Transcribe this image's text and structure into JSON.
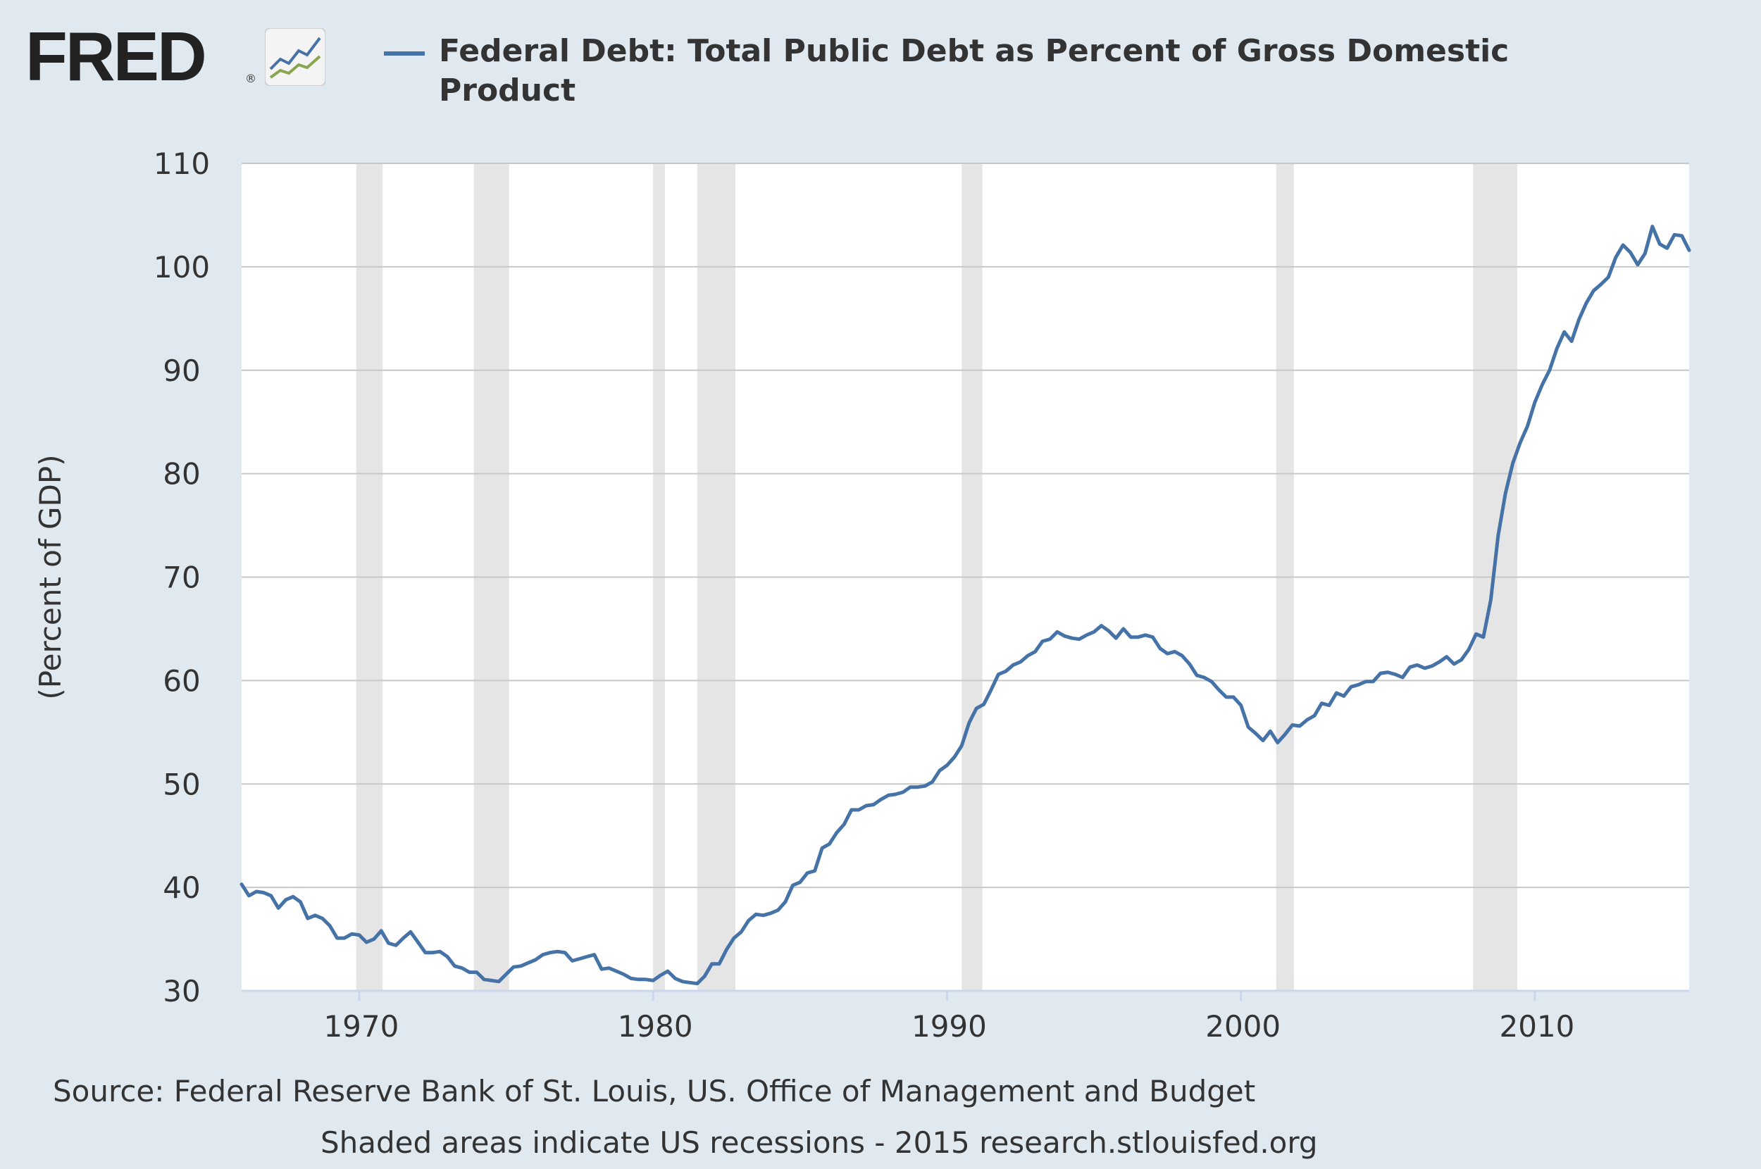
{
  "logo": {
    "text": "FRED",
    "registered": "®",
    "icon": "line-chart-icon"
  },
  "chart_data": {
    "type": "line",
    "title": "Federal Debt: Total Public Debt as Percent of Gross Domestic Product",
    "xlabel": "",
    "ylabel": "(Percent of GDP)",
    "xlim": [
      1966.0,
      2015.25
    ],
    "ylim": [
      30,
      110
    ],
    "yticks": [
      30,
      40,
      50,
      60,
      70,
      80,
      90,
      100,
      110
    ],
    "xticks": [
      1970,
      1980,
      1990,
      2000,
      2010
    ],
    "grid": true,
    "legend_position": "top",
    "colors": {
      "line": "#4572a7",
      "grid": "#c8c8c8",
      "recession": "#e5e5e5",
      "axis": "#ccd6eb"
    },
    "recessions": [
      [
        1969.9,
        1970.8
      ],
      [
        1973.9,
        1975.1
      ],
      [
        1980.0,
        1980.4
      ],
      [
        1981.5,
        1982.8
      ],
      [
        1990.5,
        1991.2
      ],
      [
        2001.2,
        2001.8
      ],
      [
        2007.9,
        2009.4
      ]
    ],
    "series": [
      {
        "name": "Federal Debt: Total Public Debt as Percent of Gross Domestic Product",
        "points": [
          [
            1966.0,
            40.3
          ],
          [
            1966.25,
            39.2
          ],
          [
            1966.5,
            39.6
          ],
          [
            1966.75,
            39.5
          ],
          [
            1967.0,
            39.2
          ],
          [
            1967.25,
            38.0
          ],
          [
            1967.5,
            38.8
          ],
          [
            1967.75,
            39.1
          ],
          [
            1968.0,
            38.6
          ],
          [
            1968.25,
            37.0
          ],
          [
            1968.5,
            37.3
          ],
          [
            1968.75,
            37.0
          ],
          [
            1969.0,
            36.3
          ],
          [
            1969.25,
            35.1
          ],
          [
            1969.5,
            35.1
          ],
          [
            1969.75,
            35.5
          ],
          [
            1970.0,
            35.4
          ],
          [
            1970.25,
            34.7
          ],
          [
            1970.5,
            35.0
          ],
          [
            1970.75,
            35.8
          ],
          [
            1971.0,
            34.6
          ],
          [
            1971.25,
            34.4
          ],
          [
            1971.5,
            35.1
          ],
          [
            1971.75,
            35.7
          ],
          [
            1972.0,
            34.7
          ],
          [
            1972.25,
            33.7
          ],
          [
            1972.5,
            33.7
          ],
          [
            1972.75,
            33.8
          ],
          [
            1973.0,
            33.3
          ],
          [
            1973.25,
            32.4
          ],
          [
            1973.5,
            32.2
          ],
          [
            1973.75,
            31.8
          ],
          [
            1974.0,
            31.8
          ],
          [
            1974.25,
            31.1
          ],
          [
            1974.5,
            31.0
          ],
          [
            1974.75,
            30.9
          ],
          [
            1975.0,
            31.6
          ],
          [
            1975.25,
            32.3
          ],
          [
            1975.5,
            32.4
          ],
          [
            1975.75,
            32.7
          ],
          [
            1976.0,
            33.0
          ],
          [
            1976.25,
            33.5
          ],
          [
            1976.5,
            33.7
          ],
          [
            1976.75,
            33.8
          ],
          [
            1977.0,
            33.7
          ],
          [
            1977.25,
            32.9
          ],
          [
            1977.5,
            33.1
          ],
          [
            1977.75,
            33.3
          ],
          [
            1978.0,
            33.5
          ],
          [
            1978.25,
            32.1
          ],
          [
            1978.5,
            32.2
          ],
          [
            1978.75,
            31.9
          ],
          [
            1979.0,
            31.6
          ],
          [
            1979.25,
            31.2
          ],
          [
            1979.5,
            31.1
          ],
          [
            1979.75,
            31.1
          ],
          [
            1980.0,
            31.0
          ],
          [
            1980.25,
            31.5
          ],
          [
            1980.5,
            31.9
          ],
          [
            1980.75,
            31.2
          ],
          [
            1981.0,
            30.9
          ],
          [
            1981.25,
            30.8
          ],
          [
            1981.5,
            30.7
          ],
          [
            1981.75,
            31.4
          ],
          [
            1982.0,
            32.6
          ],
          [
            1982.25,
            32.6
          ],
          [
            1982.5,
            34.0
          ],
          [
            1982.75,
            35.1
          ],
          [
            1983.0,
            35.7
          ],
          [
            1983.25,
            36.8
          ],
          [
            1983.5,
            37.4
          ],
          [
            1983.75,
            37.3
          ],
          [
            1984.0,
            37.5
          ],
          [
            1984.25,
            37.8
          ],
          [
            1984.5,
            38.6
          ],
          [
            1984.75,
            40.2
          ],
          [
            1985.0,
            40.5
          ],
          [
            1985.25,
            41.4
          ],
          [
            1985.5,
            41.6
          ],
          [
            1985.75,
            43.8
          ],
          [
            1986.0,
            44.2
          ],
          [
            1986.25,
            45.3
          ],
          [
            1986.5,
            46.1
          ],
          [
            1986.75,
            47.5
          ],
          [
            1987.0,
            47.5
          ],
          [
            1987.25,
            47.9
          ],
          [
            1987.5,
            48.0
          ],
          [
            1987.75,
            48.5
          ],
          [
            1988.0,
            48.9
          ],
          [
            1988.25,
            49.0
          ],
          [
            1988.5,
            49.2
          ],
          [
            1988.75,
            49.7
          ],
          [
            1989.0,
            49.7
          ],
          [
            1989.25,
            49.8
          ],
          [
            1989.5,
            50.2
          ],
          [
            1989.75,
            51.3
          ],
          [
            1990.0,
            51.8
          ],
          [
            1990.25,
            52.6
          ],
          [
            1990.5,
            53.7
          ],
          [
            1990.75,
            55.9
          ],
          [
            1991.0,
            57.3
          ],
          [
            1991.25,
            57.7
          ],
          [
            1991.5,
            59.1
          ],
          [
            1991.75,
            60.6
          ],
          [
            1992.0,
            60.9
          ],
          [
            1992.25,
            61.5
          ],
          [
            1992.5,
            61.8
          ],
          [
            1992.75,
            62.4
          ],
          [
            1993.0,
            62.8
          ],
          [
            1993.25,
            63.8
          ],
          [
            1993.5,
            64.0
          ],
          [
            1993.75,
            64.7
          ],
          [
            1994.0,
            64.3
          ],
          [
            1994.25,
            64.1
          ],
          [
            1994.5,
            64.0
          ],
          [
            1994.75,
            64.4
          ],
          [
            1995.0,
            64.7
          ],
          [
            1995.25,
            65.3
          ],
          [
            1995.5,
            64.8
          ],
          [
            1995.75,
            64.1
          ],
          [
            1996.0,
            65.0
          ],
          [
            1996.25,
            64.2
          ],
          [
            1996.5,
            64.2
          ],
          [
            1996.75,
            64.4
          ],
          [
            1997.0,
            64.2
          ],
          [
            1997.25,
            63.1
          ],
          [
            1997.5,
            62.6
          ],
          [
            1997.75,
            62.8
          ],
          [
            1998.0,
            62.4
          ],
          [
            1998.25,
            61.6
          ],
          [
            1998.5,
            60.5
          ],
          [
            1998.75,
            60.3
          ],
          [
            1999.0,
            59.9
          ],
          [
            1999.25,
            59.1
          ],
          [
            1999.5,
            58.4
          ],
          [
            1999.75,
            58.4
          ],
          [
            2000.0,
            57.6
          ],
          [
            2000.25,
            55.5
          ],
          [
            2000.5,
            54.9
          ],
          [
            2000.75,
            54.2
          ],
          [
            2001.0,
            55.1
          ],
          [
            2001.25,
            54.0
          ],
          [
            2001.5,
            54.8
          ],
          [
            2001.75,
            55.7
          ],
          [
            2002.0,
            55.6
          ],
          [
            2002.25,
            56.2
          ],
          [
            2002.5,
            56.6
          ],
          [
            2002.75,
            57.8
          ],
          [
            2003.0,
            57.6
          ],
          [
            2003.25,
            58.8
          ],
          [
            2003.5,
            58.5
          ],
          [
            2003.75,
            59.4
          ],
          [
            2004.0,
            59.6
          ],
          [
            2004.25,
            59.9
          ],
          [
            2004.5,
            59.9
          ],
          [
            2004.75,
            60.7
          ],
          [
            2005.0,
            60.8
          ],
          [
            2005.25,
            60.6
          ],
          [
            2005.5,
            60.3
          ],
          [
            2005.75,
            61.3
          ],
          [
            2006.0,
            61.5
          ],
          [
            2006.25,
            61.2
          ],
          [
            2006.5,
            61.4
          ],
          [
            2006.75,
            61.8
          ],
          [
            2007.0,
            62.3
          ],
          [
            2007.25,
            61.6
          ],
          [
            2007.5,
            62.0
          ],
          [
            2007.75,
            63.0
          ],
          [
            2008.0,
            64.5
          ],
          [
            2008.25,
            64.2
          ],
          [
            2008.5,
            67.8
          ],
          [
            2008.75,
            74.0
          ],
          [
            2009.0,
            78.1
          ],
          [
            2009.25,
            81.0
          ],
          [
            2009.5,
            83.0
          ],
          [
            2009.75,
            84.6
          ],
          [
            2010.0,
            86.9
          ],
          [
            2010.25,
            88.6
          ],
          [
            2010.5,
            90.0
          ],
          [
            2010.75,
            92.1
          ],
          [
            2011.0,
            93.7
          ],
          [
            2011.25,
            92.8
          ],
          [
            2011.5,
            94.9
          ],
          [
            2011.75,
            96.5
          ],
          [
            2012.0,
            97.7
          ],
          [
            2012.25,
            98.3
          ],
          [
            2012.5,
            99.0
          ],
          [
            2012.75,
            100.9
          ],
          [
            2013.0,
            102.1
          ],
          [
            2013.25,
            101.4
          ],
          [
            2013.5,
            100.2
          ],
          [
            2013.75,
            101.3
          ],
          [
            2014.0,
            103.9
          ],
          [
            2014.25,
            102.2
          ],
          [
            2014.5,
            101.8
          ],
          [
            2014.75,
            103.1
          ],
          [
            2015.0,
            103.0
          ],
          [
            2015.25,
            101.6
          ]
        ]
      }
    ]
  },
  "source_text": "Source: Federal Reserve Bank of St. Louis, US. Office of Management and Budget",
  "note_text": "Shaded areas indicate US recessions - 2015 research.stlouisfed.org"
}
